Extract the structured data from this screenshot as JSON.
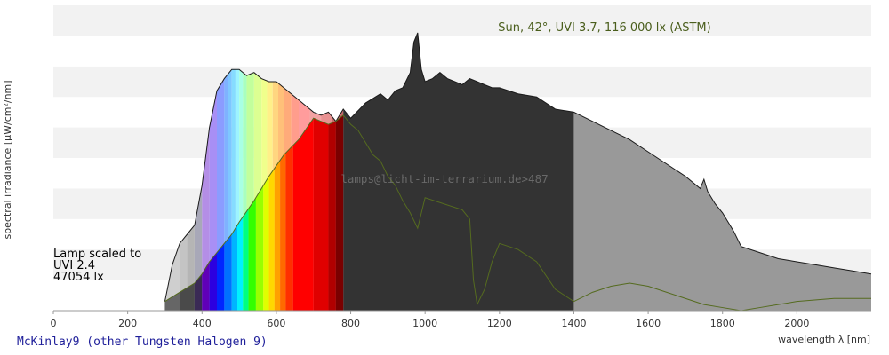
{
  "chart_data": {
    "type": "area",
    "title": "Sun, 42°, UVI 3.7, 116 000 lx (ASTM)",
    "xlabel": "wavelength λ [nm]",
    "ylabel": "spectral irradiance [µW/cm²/nm]",
    "xlim": [
      0,
      2200
    ],
    "xticks": [
      "0",
      "200",
      "400",
      "600",
      "800",
      "1000",
      "1200",
      "1400",
      "1600",
      "1800",
      "2000"
    ],
    "ylim": [
      0,
      10
    ],
    "grid": "horizontal bands",
    "lamp_note": [
      "Lamp scaled to",
      "UVI 2.4",
      "47054 lx"
    ],
    "watermark": "lamps@licht-im-terrarium.de>487",
    "footer": "McKinlay9 (other Tungsten Halogen 9)",
    "series": [
      {
        "role": "sun-spectrum",
        "x": [
          300,
          320,
          340,
          360,
          380,
          400,
          420,
          440,
          460,
          480,
          500,
          520,
          540,
          560,
          580,
          600,
          620,
          640,
          660,
          680,
          700,
          720,
          740,
          760,
          780,
          800,
          840,
          880,
          900,
          920,
          940,
          960,
          970,
          980,
          990,
          1000,
          1020,
          1040,
          1060,
          1080,
          1100,
          1120,
          1140,
          1160,
          1180,
          1200,
          1250,
          1300,
          1350,
          1400,
          1450,
          1500,
          1550,
          1600,
          1650,
          1700,
          1740,
          1750,
          1760,
          1780,
          1800,
          1830,
          1850,
          1900,
          1950,
          2000,
          2050,
          2100,
          2150,
          2200
        ],
        "y": [
          0.3,
          1.5,
          2.2,
          2.5,
          2.8,
          4.1,
          6.0,
          7.2,
          7.6,
          7.9,
          7.9,
          7.7,
          7.8,
          7.6,
          7.5,
          7.5,
          7.3,
          7.1,
          6.9,
          6.7,
          6.5,
          6.4,
          6.5,
          6.2,
          6.6,
          6.3,
          6.8,
          7.1,
          6.9,
          7.2,
          7.3,
          7.8,
          8.8,
          9.1,
          7.9,
          7.5,
          7.6,
          7.8,
          7.6,
          7.5,
          7.4,
          7.6,
          7.5,
          7.4,
          7.3,
          7.3,
          7.1,
          7.0,
          6.6,
          6.5,
          6.2,
          5.9,
          5.6,
          5.2,
          4.8,
          4.4,
          4.0,
          4.3,
          3.9,
          3.5,
          3.2,
          2.6,
          2.1,
          1.9,
          1.7,
          1.6,
          1.5,
          1.4,
          1.3,
          1.2
        ]
      },
      {
        "role": "lamp-spectrum",
        "x": [
          300,
          340,
          380,
          400,
          420,
          440,
          460,
          480,
          500,
          540,
          580,
          620,
          660,
          700,
          740,
          760,
          780,
          800,
          820,
          840,
          860,
          880,
          900,
          920,
          940,
          960,
          980,
          1000,
          1050,
          1100,
          1120,
          1130,
          1140,
          1160,
          1180,
          1200,
          1250,
          1300,
          1350,
          1400,
          1450,
          1500,
          1550,
          1600,
          1650,
          1700,
          1750,
          1800,
          1850,
          1900,
          1950,
          2000,
          2100,
          2200
        ],
        "y": [
          0.3,
          0.6,
          0.9,
          1.2,
          1.6,
          1.9,
          2.2,
          2.5,
          2.9,
          3.6,
          4.4,
          5.1,
          5.6,
          6.3,
          6.1,
          6.2,
          6.4,
          6.1,
          5.9,
          5.5,
          5.1,
          4.9,
          4.4,
          4.1,
          3.6,
          3.2,
          2.7,
          3.7,
          3.5,
          3.3,
          3.0,
          1.0,
          0.2,
          0.7,
          1.6,
          2.2,
          2.0,
          1.6,
          0.7,
          0.3,
          0.6,
          0.8,
          0.9,
          0.8,
          0.6,
          0.4,
          0.2,
          0.1,
          0.0,
          0.1,
          0.2,
          0.3,
          0.4,
          0.4
        ]
      }
    ]
  }
}
